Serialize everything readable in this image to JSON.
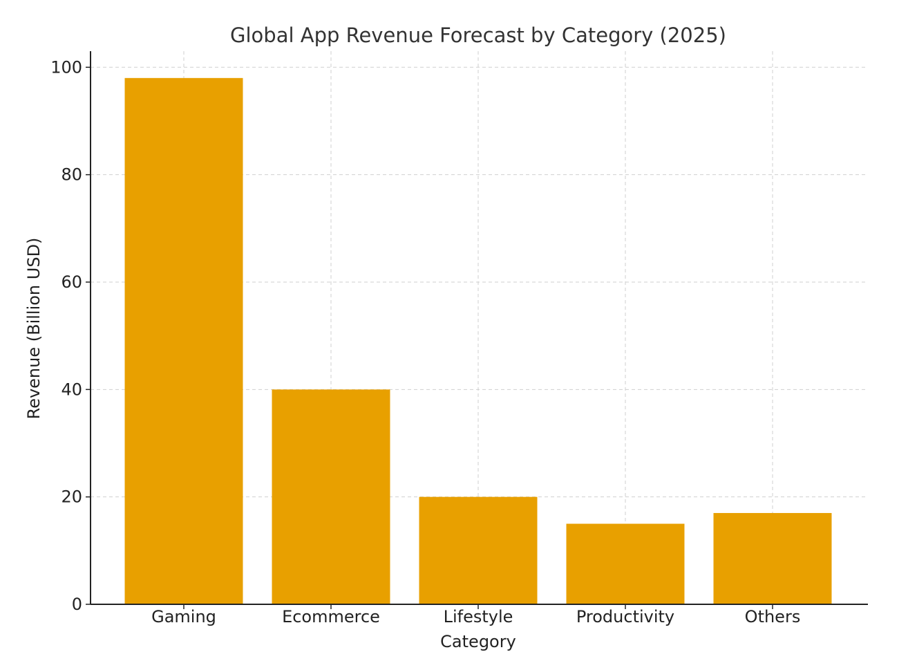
{
  "chart_data": {
    "type": "bar",
    "title": "Global App Revenue Forecast by Category (2025)",
    "xlabel": "Category",
    "ylabel": "Revenue (Billion USD)",
    "categories": [
      "Gaming",
      "Ecommerce",
      "Lifestyle",
      "Productivity",
      "Others"
    ],
    "values": [
      98,
      40,
      20,
      15,
      17
    ],
    "ylim": [
      0,
      103
    ],
    "yticks": [
      0,
      20,
      40,
      60,
      80,
      100
    ],
    "grid": true,
    "bar_color": "#E8A000"
  }
}
